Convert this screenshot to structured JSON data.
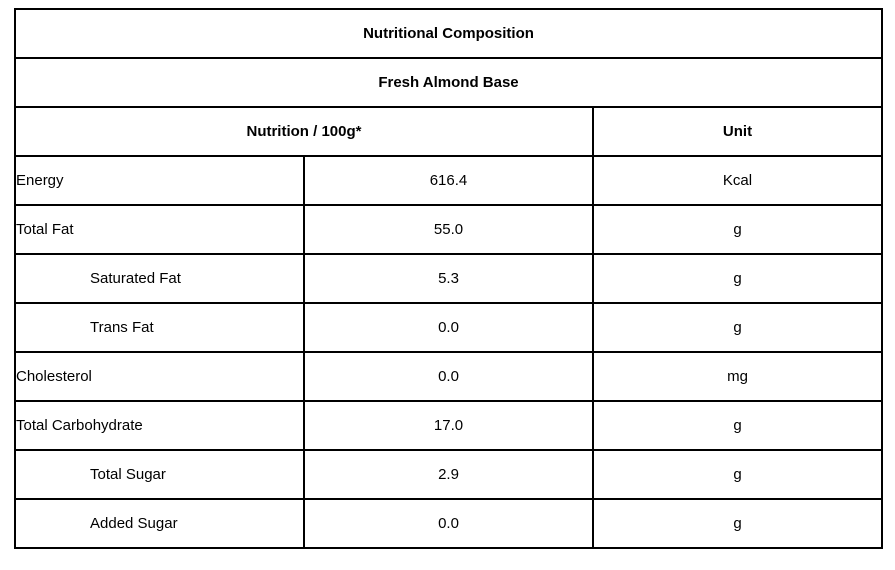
{
  "table": {
    "title": "Nutritional Composition",
    "subtitle": "Fresh Almond Base",
    "header": {
      "nutrition_col": "Nutrition / 100g*",
      "unit_col": "Unit"
    },
    "rows": [
      {
        "name": "Energy",
        "value": "616.4",
        "unit": "Kcal",
        "indent": false
      },
      {
        "name": "Total Fat",
        "value": "55.0",
        "unit": "g",
        "indent": false
      },
      {
        "name": "Saturated Fat",
        "value": "5.3",
        "unit": "g",
        "indent": true
      },
      {
        "name": "Trans Fat",
        "value": "0.0",
        "unit": "g",
        "indent": true
      },
      {
        "name": "Cholesterol",
        "value": "0.0",
        "unit": "mg",
        "indent": false
      },
      {
        "name": "Total Carbohydrate",
        "value": "17.0",
        "unit": "g",
        "indent": false
      },
      {
        "name": "Total Sugar",
        "value": "2.9",
        "unit": "g",
        "indent": true
      },
      {
        "name": "Added Sugar",
        "value": "0.0",
        "unit": "g",
        "indent": true
      }
    ],
    "colors": {
      "border": "#000000",
      "text": "#000000",
      "background": "#ffffff"
    }
  }
}
